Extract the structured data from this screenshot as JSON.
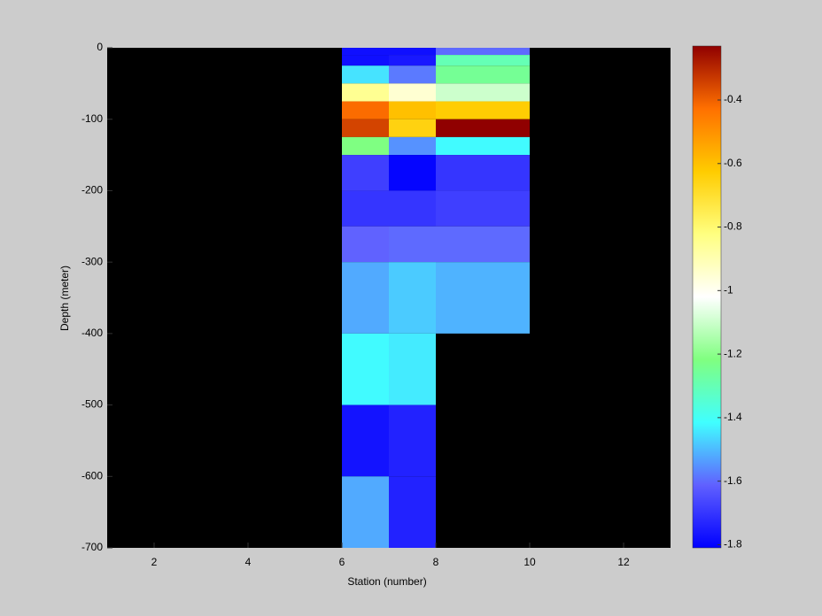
{
  "chart_data": {
    "type": "heatmap",
    "xlabel": "Station (number)",
    "ylabel": "Depth (meter)",
    "xlim": [
      1,
      13
    ],
    "xticks": [
      2,
      4,
      6,
      8,
      10,
      12
    ],
    "ylim": [
      -700,
      0
    ],
    "yticks": [
      -700,
      -600,
      -500,
      -400,
      -300,
      -200,
      -100,
      0
    ],
    "background": "#000000",
    "x_edges": [
      6,
      7,
      8,
      10
    ],
    "y_edges": [
      0,
      -10,
      -25,
      -50,
      -75,
      -100,
      -125,
      -150,
      -200,
      -250,
      -300,
      -400,
      -500,
      -600,
      -700
    ],
    "values": [
      [
        -1.78,
        -1.78,
        -1.6
      ],
      [
        -1.78,
        -1.76,
        -1.3
      ],
      [
        -1.45,
        -1.58,
        -1.25
      ],
      [
        -0.85,
        -0.95,
        -1.1
      ],
      [
        -0.42,
        -0.6,
        -0.63
      ],
      [
        -0.35,
        -0.65,
        -0.23
      ],
      [
        -1.22,
        -1.55,
        -1.42
      ],
      [
        -1.68,
        -1.8,
        -1.7
      ],
      [
        -1.7,
        -1.7,
        -1.68
      ],
      [
        -1.61,
        -1.6,
        -1.6
      ],
      [
        -1.52,
        -1.48,
        -1.51
      ],
      [
        -1.42,
        -1.44,
        null
      ],
      [
        -1.77,
        -1.74,
        null
      ],
      [
        -1.52,
        -1.74,
        null
      ]
    ],
    "clim": [
      -1.81,
      -0.23
    ],
    "colormap": [
      "#0000ff",
      "#6060ff",
      "#40ffff",
      "#80ff80",
      "#ffffff",
      "#ffff80",
      "#ffcc00",
      "#ff7000",
      "#900000"
    ],
    "cticks": [
      -1.8,
      -1.6,
      -1.4,
      -1.2,
      -1,
      -0.8,
      -0.6,
      -0.4
    ]
  }
}
